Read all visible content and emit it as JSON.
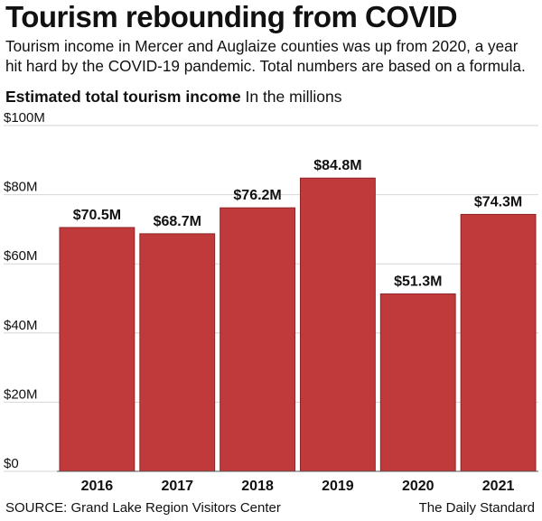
{
  "header": {
    "title": "Tourism rebounding from COVID",
    "description": "Tourism income in Mercer and Auglaize counties was up from 2020, a year hit hard by the COVID-19 pandemic. Total numbers are based on a formula.",
    "subtitle_bold": "Estimated total tourism income",
    "subtitle_note": "In the millions"
  },
  "footer": {
    "source": "SOURCE: Grand Lake Region Visitors Center",
    "credit": "The Daily Standard"
  },
  "chart_data": {
    "type": "bar",
    "categories": [
      "2016",
      "2017",
      "2018",
      "2019",
      "2020",
      "2021"
    ],
    "values": [
      70.5,
      68.7,
      76.2,
      84.8,
      51.3,
      74.3
    ],
    "data_labels": [
      "$70.5M",
      "$68.7M",
      "$76.2M",
      "$84.8M",
      "$51.3M",
      "$74.3M"
    ],
    "ylim": [
      0,
      100
    ],
    "yticks": [
      0,
      20,
      40,
      60,
      80,
      100
    ],
    "ytick_labels": [
      "$0",
      "$20M",
      "$40M",
      "$60M",
      "$80M",
      "$100M"
    ],
    "grid": true,
    "bar_color": "#c0393b",
    "bar_edge_color": "#8e2527"
  }
}
